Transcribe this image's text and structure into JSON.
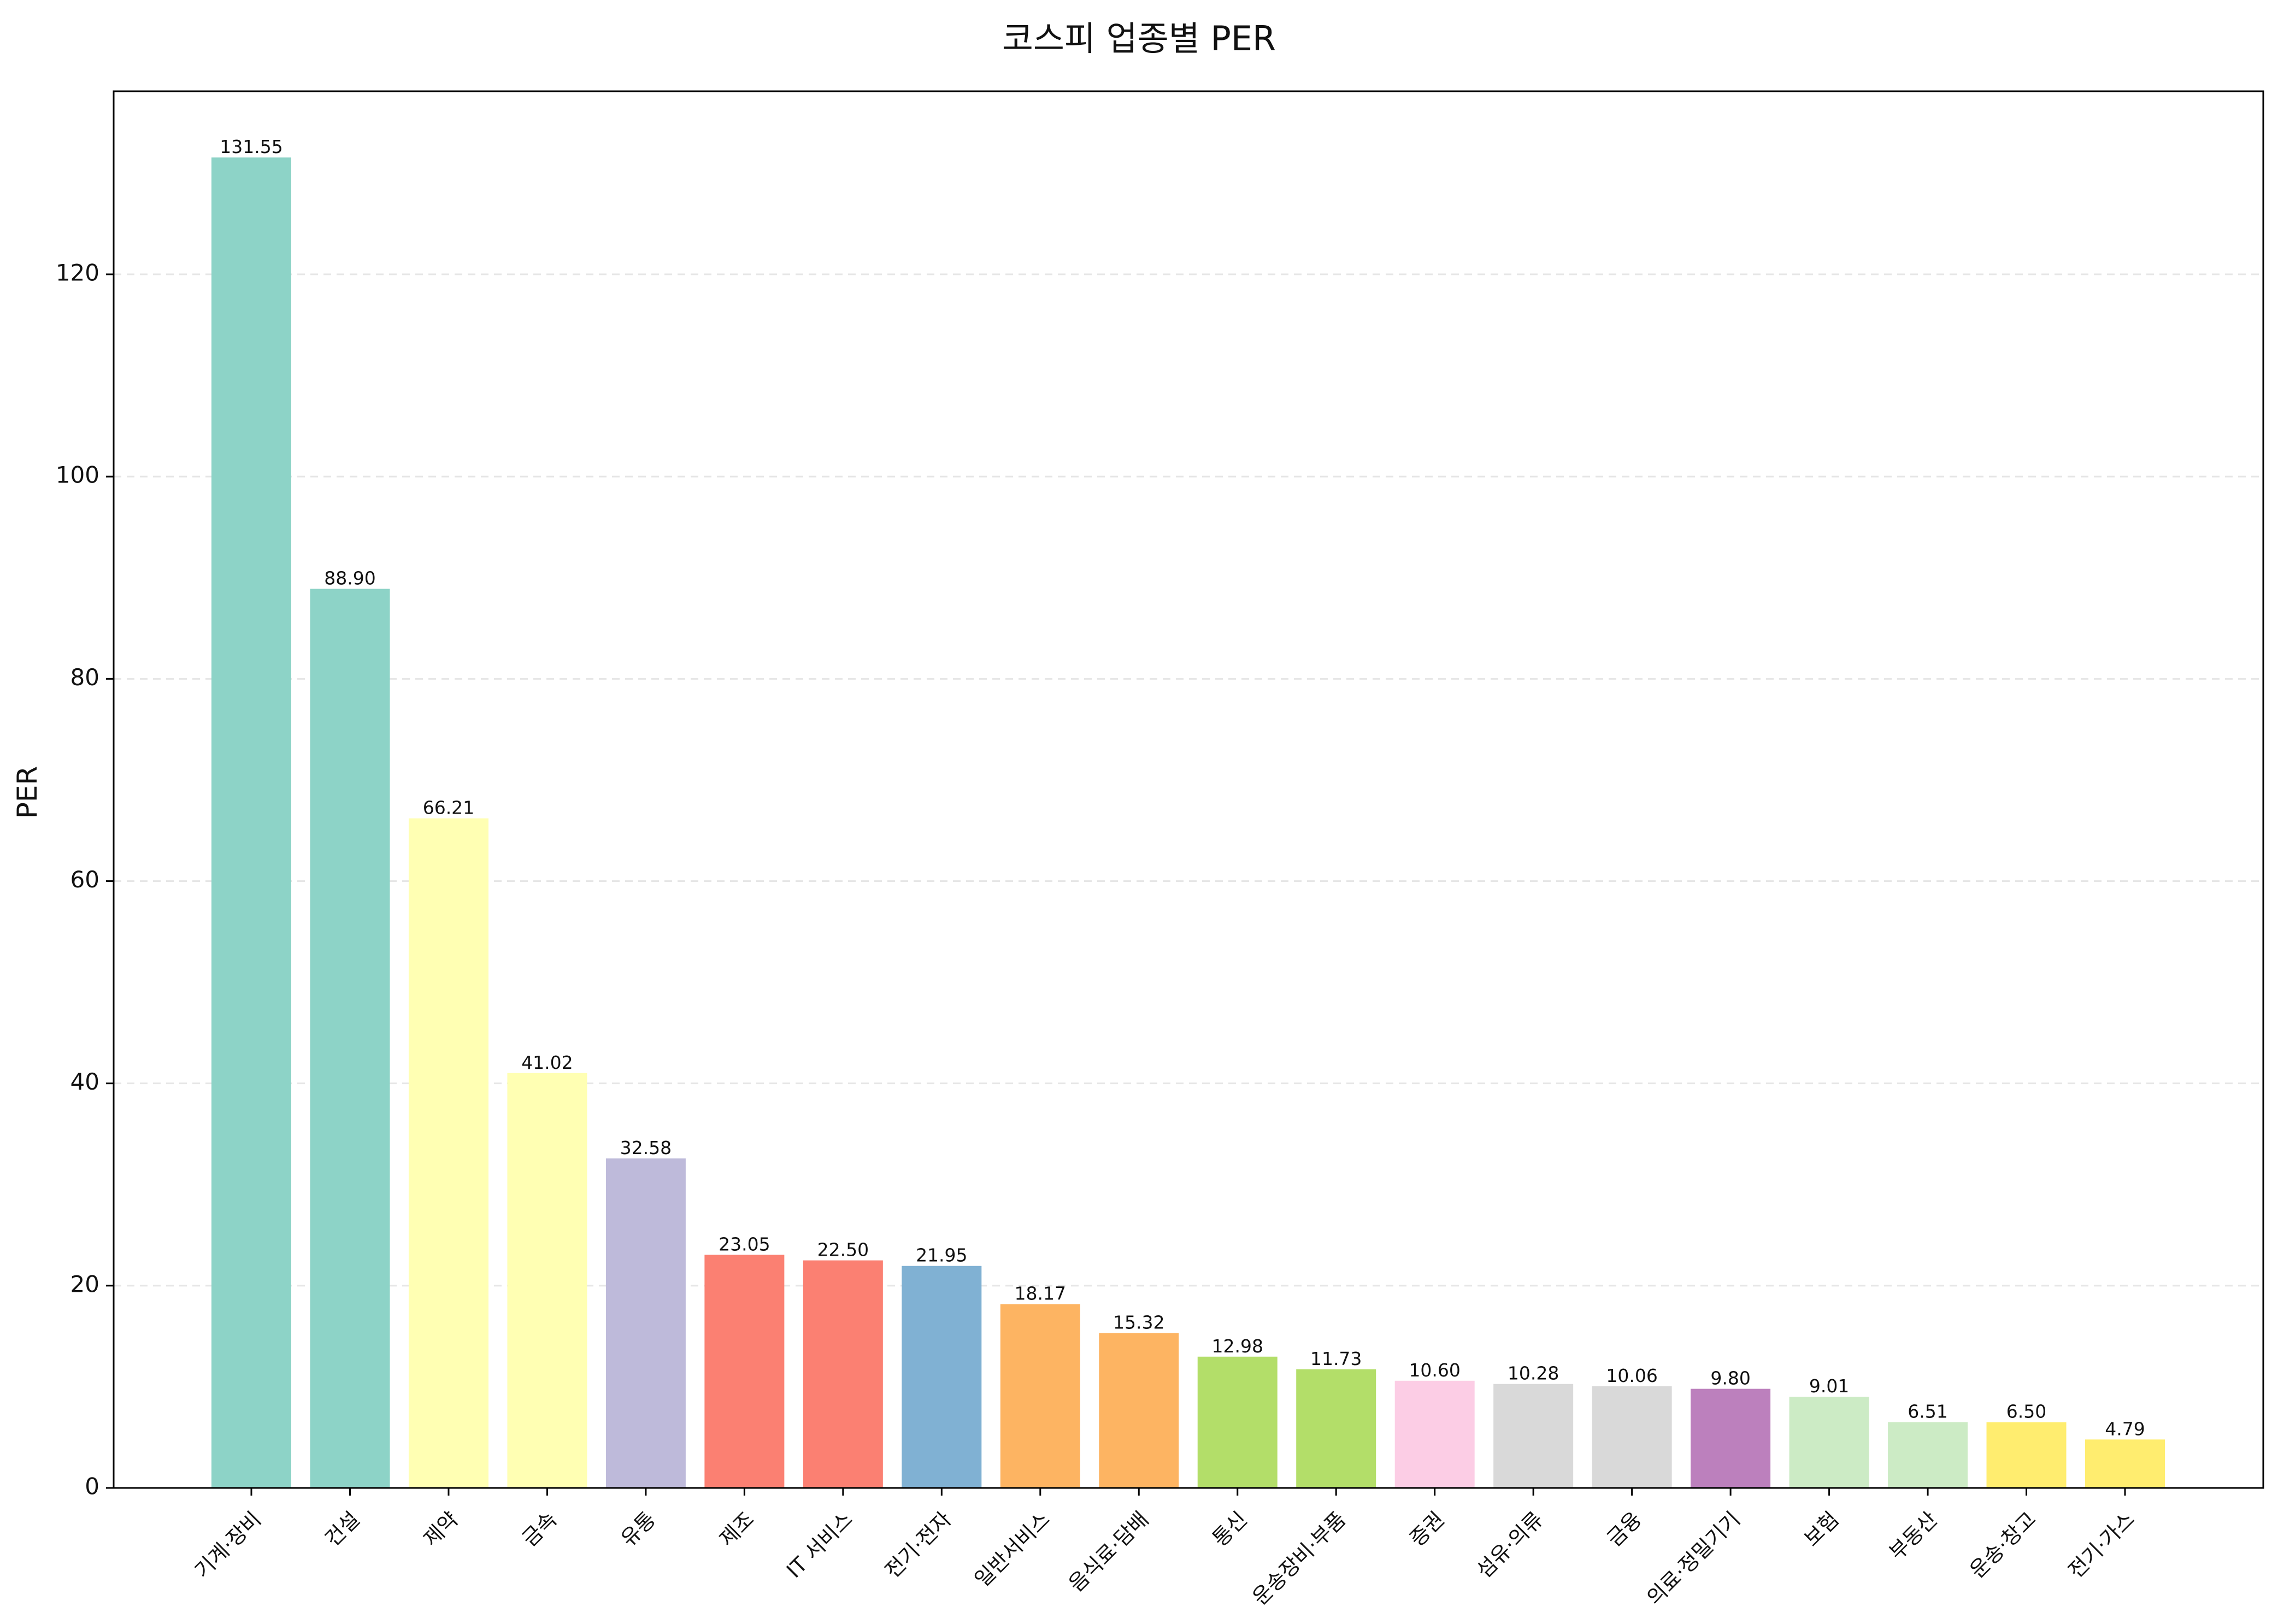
{
  "chart_data": {
    "type": "bar",
    "title": "코스피 업종별 PER",
    "xlabel": "",
    "ylabel": "PER",
    "ylim": [
      0,
      138.1
    ],
    "yticks": [
      0,
      20,
      40,
      60,
      80,
      100,
      120
    ],
    "grid": "y-dashed",
    "categories": [
      "기계·장비",
      "건설",
      "제약",
      "금속",
      "유통",
      "제조",
      "IT 서비스",
      "전기·전자",
      "일반서비스",
      "음식료·담배",
      "통신",
      "운송장비·부품",
      "증권",
      "섬유·의류",
      "금융",
      "의료·정밀기기",
      "보험",
      "부동산",
      "운송·창고",
      "전기·가스"
    ],
    "values": [
      131.55,
      88.9,
      66.21,
      41.02,
      32.58,
      23.05,
      22.5,
      21.95,
      18.17,
      15.32,
      12.98,
      11.73,
      10.6,
      10.28,
      10.06,
      9.8,
      9.01,
      6.51,
      6.5,
      4.79
    ],
    "value_labels": [
      "131.55",
      "88.90",
      "66.21",
      "41.02",
      "32.58",
      "23.05",
      "22.50",
      "21.95",
      "18.17",
      "15.32",
      "12.98",
      "11.73",
      "10.60",
      "10.28",
      "10.06",
      "9.80",
      "9.01",
      "6.51",
      "6.50",
      "4.79"
    ],
    "colors": [
      "#8dd3c7",
      "#8dd3c7",
      "#ffffb3",
      "#ffffb3",
      "#bebada",
      "#fb8072",
      "#fb8072",
      "#80b1d3",
      "#fdb462",
      "#fdb462",
      "#b3de69",
      "#b3de69",
      "#fccde5",
      "#d9d9d9",
      "#d9d9d9",
      "#bc80bd",
      "#ccebc5",
      "#ccebc5",
      "#ffed6f",
      "#ffed6f"
    ]
  }
}
